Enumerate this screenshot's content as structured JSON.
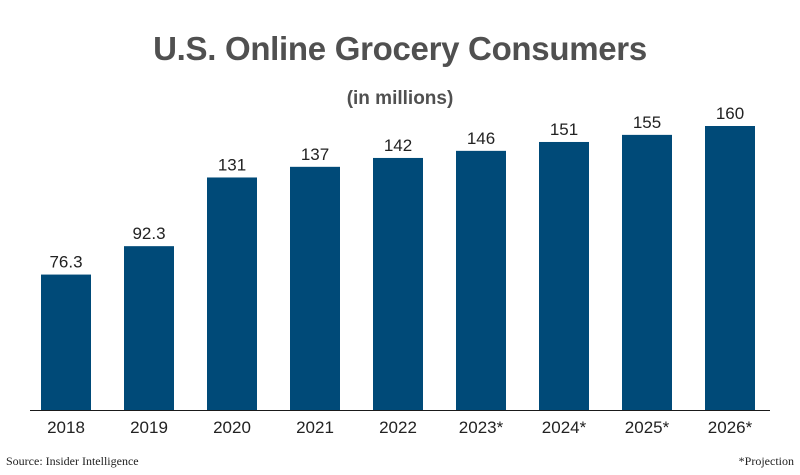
{
  "colors": {
    "bar": "#004a78",
    "text": "#222222",
    "title": "#505050",
    "axis": "#1a1a1a"
  },
  "footer": {
    "source": "Source: Insider Intelligence",
    "note": "*Projection"
  },
  "chart_data": {
    "type": "bar",
    "title": "U.S. Online Grocery Consumers",
    "subtitle": "(in millions)",
    "xlabel": "",
    "ylabel": "",
    "categories": [
      "2018",
      "2019",
      "2020",
      "2021",
      "2022",
      "2023*",
      "2024*",
      "2025*",
      "2026*"
    ],
    "values": [
      76.3,
      92.3,
      131,
      137,
      142,
      146,
      151,
      155,
      160
    ],
    "value_labels": [
      "76.3",
      "92.3",
      "131",
      "137",
      "142",
      "146",
      "151",
      "155",
      "160"
    ],
    "ylim": [
      0,
      160
    ],
    "grid": false,
    "legend": "none"
  }
}
